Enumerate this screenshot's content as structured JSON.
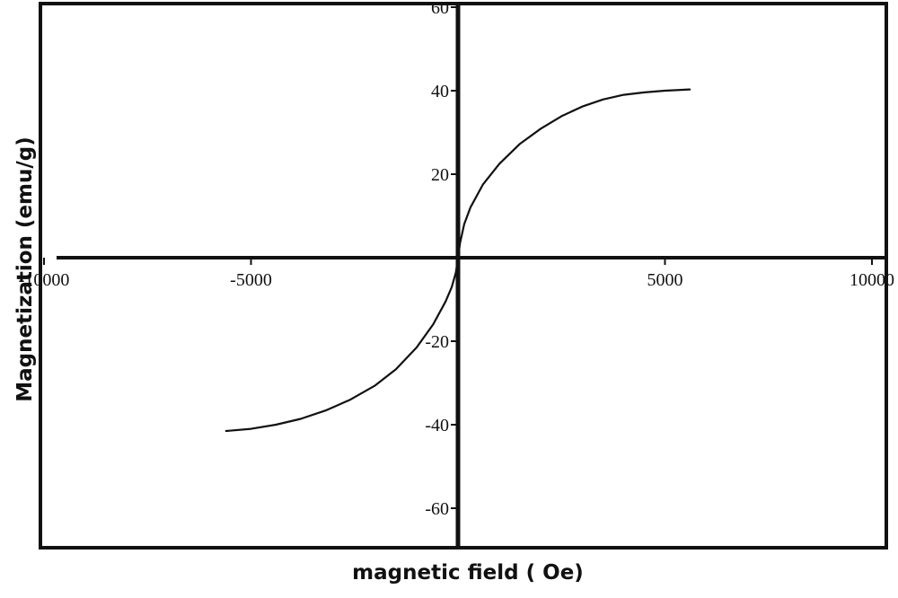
{
  "chart_data": {
    "type": "line",
    "title": "",
    "xlabel": "magnetic field ( Oe)",
    "ylabel": "Magnetization (emu/g)",
    "xlim": [
      -10000,
      10000
    ],
    "ylim": [
      -60,
      60
    ],
    "x_ticks": [
      -10000,
      -5000,
      5000,
      10000
    ],
    "x_tick_labels": [
      "-10000",
      "-5000",
      "5000",
      "10000"
    ],
    "y_ticks": [
      60,
      40,
      20,
      -20,
      -40,
      -60
    ],
    "y_tick_labels": [
      "60",
      "40",
      "20",
      "-20",
      "-40",
      "-60"
    ],
    "grid": false,
    "legend": "none",
    "line_color": "#111111",
    "series": [
      {
        "x": [
          -5600,
          -5000,
          -4400,
          -3800,
          -3200,
          -2600,
          -2000,
          -1500,
          -1000,
          -600,
          -300,
          -150,
          -50,
          0,
          50,
          150,
          300,
          600,
          1000,
          1500,
          2000,
          2500,
          3000,
          3500,
          4000,
          4500,
          5000,
          5600
        ],
        "y": [
          -41.5,
          -41.0,
          -40.0,
          -38.6,
          -36.6,
          -34.0,
          -30.6,
          -26.7,
          -21.5,
          -16.0,
          -10.5,
          -7.0,
          -3.5,
          0,
          3.5,
          8.0,
          12.0,
          17.5,
          22.5,
          27.3,
          30.9,
          33.9,
          36.2,
          37.9,
          39.0,
          39.6,
          40.0,
          40.3
        ]
      }
    ]
  }
}
